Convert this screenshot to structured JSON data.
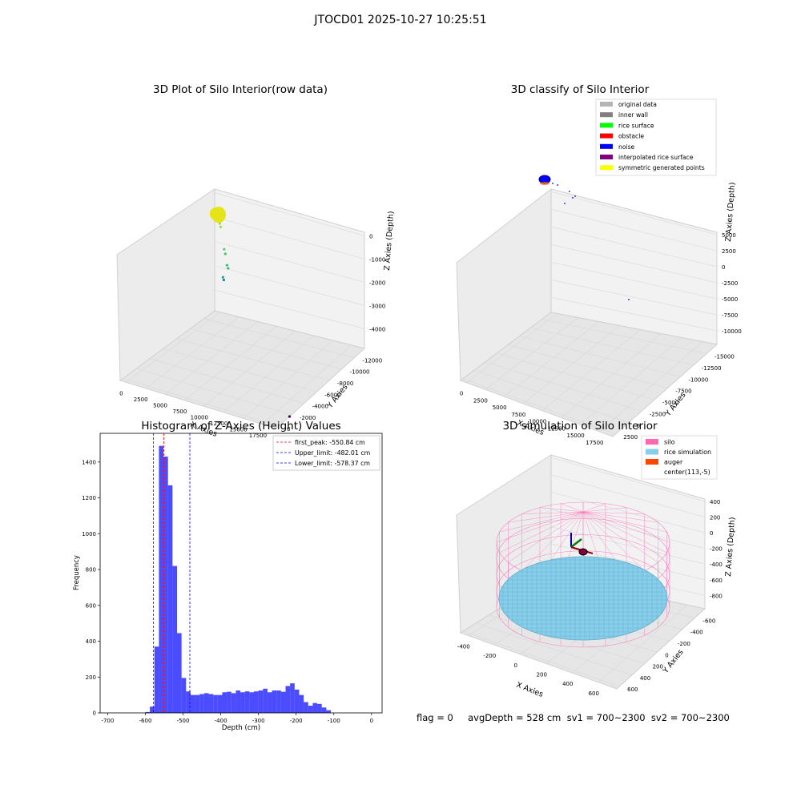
{
  "suptitle": "JTOCD01 2025-10-27 10:25:51",
  "footer": {
    "text": "flag = 0     avgDepth = 528 cm  sv1 = 700~2300  sv2 = 700~2300"
  },
  "chart_data": [
    {
      "type": "scatter",
      "projection": "3d",
      "title": "3D Plot of Silo Interior(row data)",
      "xlabel": "X Axies",
      "ylabel": "Y Axies",
      "zlabel": "Z Axies (Depth)",
      "xticks": [
        "0",
        "2500",
        "5000",
        "7500",
        "10000",
        "12500",
        "15000",
        "17500"
      ],
      "yticks": [
        "0",
        "-2000",
        "-4000",
        "-6000",
        "-8000",
        "-10000",
        "-12000"
      ],
      "zticks": [
        "0",
        "-1000",
        "-2000",
        "-3000",
        "-4000"
      ],
      "grid": true,
      "colormap": "viridis",
      "points": [
        {
          "x": 300,
          "y": -300,
          "z": -50,
          "color": "#e5e419"
        },
        {
          "x": 500,
          "y": -500,
          "z": -80,
          "color": "#dde318"
        },
        {
          "x": 900,
          "y": -600,
          "z": -120,
          "color": "#bddf26"
        },
        {
          "x": 1200,
          "y": -700,
          "z": -200,
          "color": "#a0da39"
        },
        {
          "x": 1500,
          "y": -500,
          "z": -300,
          "color": "#9bd93c"
        },
        {
          "x": 2500,
          "y": -600,
          "z": -900,
          "color": "#5ec962"
        },
        {
          "x": 2800,
          "y": -700,
          "z": -1000,
          "color": "#4ac16d"
        },
        {
          "x": 3200,
          "y": -900,
          "z": -1300,
          "color": "#3bbb75"
        },
        {
          "x": 3500,
          "y": -1000,
          "z": -1350,
          "color": "#35b779"
        },
        {
          "x": 2200,
          "y": -500,
          "z": -1900,
          "color": "#2a9d8f"
        },
        {
          "x": 2400,
          "y": -600,
          "z": -1950,
          "color": "#26828e"
        },
        {
          "x": 16800,
          "y": -11800,
          "z": -3700,
          "color": "#440154"
        }
      ]
    },
    {
      "type": "scatter",
      "projection": "3d",
      "title": "3D classify of Silo Interior",
      "xlabel": "X Axies",
      "ylabel": "Y Axies",
      "zlabel": "Z Axies (Depth)",
      "xticks": [
        "0",
        "2500",
        "5000",
        "7500",
        "10000",
        "12500",
        "15000",
        "17500"
      ],
      "yticks": [
        "2500",
        "0",
        "-2500",
        "-5000",
        "-7500",
        "-10000",
        "-12500",
        "-15000"
      ],
      "zticks": [
        "5000",
        "2500",
        "0",
        "-2500",
        "-5000",
        "-7500",
        "-10000"
      ],
      "grid": true,
      "legend_position": "top-right",
      "legend": [
        {
          "label": "original data",
          "color": "#b4b4b4"
        },
        {
          "label": "inner wall",
          "color": "#808080"
        },
        {
          "label": "rice surface",
          "color": "#00ff00"
        },
        {
          "label": "obstacle",
          "color": "#ff0000"
        },
        {
          "label": "noise",
          "color": "#0000ff"
        },
        {
          "label": "interpolated rice surface",
          "color": "#800080"
        },
        {
          "label": "symmetric generated points",
          "color": "#ffff00"
        }
      ]
    },
    {
      "type": "bar",
      "title": "Histogram of Z-Axies (Height) Values",
      "xlabel": "Depth (cm)",
      "ylabel": "Frequency",
      "xlim": [
        -720,
        28
      ],
      "ylim": [
        0,
        1560
      ],
      "xticks": [
        -700,
        -600,
        -500,
        -400,
        -300,
        -200,
        -100,
        0
      ],
      "yticks": [
        0,
        200,
        400,
        600,
        800,
        1000,
        1200,
        1400
      ],
      "bin_width": 12,
      "bar_color": "#0000ff",
      "bins": [
        {
          "x0": -600,
          "count": 5
        },
        {
          "x0": -588,
          "count": 35
        },
        {
          "x0": -576,
          "count": 370
        },
        {
          "x0": -564,
          "count": 1490
        },
        {
          "x0": -552,
          "count": 1430
        },
        {
          "x0": -540,
          "count": 1270
        },
        {
          "x0": -528,
          "count": 820
        },
        {
          "x0": -516,
          "count": 445
        },
        {
          "x0": -504,
          "count": 195
        },
        {
          "x0": -492,
          "count": 120
        },
        {
          "x0": -480,
          "count": 100
        },
        {
          "x0": -468,
          "count": 100
        },
        {
          "x0": -456,
          "count": 105
        },
        {
          "x0": -444,
          "count": 110
        },
        {
          "x0": -432,
          "count": 105
        },
        {
          "x0": -420,
          "count": 100
        },
        {
          "x0": -408,
          "count": 100
        },
        {
          "x0": -396,
          "count": 115
        },
        {
          "x0": -384,
          "count": 118
        },
        {
          "x0": -372,
          "count": 110
        },
        {
          "x0": -360,
          "count": 125
        },
        {
          "x0": -348,
          "count": 115
        },
        {
          "x0": -336,
          "count": 120
        },
        {
          "x0": -324,
          "count": 115
        },
        {
          "x0": -312,
          "count": 120
        },
        {
          "x0": -300,
          "count": 125
        },
        {
          "x0": -288,
          "count": 135
        },
        {
          "x0": -276,
          "count": 115
        },
        {
          "x0": -264,
          "count": 125
        },
        {
          "x0": -252,
          "count": 125
        },
        {
          "x0": -240,
          "count": 118
        },
        {
          "x0": -228,
          "count": 150
        },
        {
          "x0": -216,
          "count": 165
        },
        {
          "x0": -204,
          "count": 130
        },
        {
          "x0": -192,
          "count": 100
        },
        {
          "x0": -180,
          "count": 60
        },
        {
          "x0": -168,
          "count": 40
        },
        {
          "x0": -156,
          "count": 55
        },
        {
          "x0": -144,
          "count": 50
        },
        {
          "x0": -132,
          "count": 30
        },
        {
          "x0": -120,
          "count": 15
        }
      ],
      "vlines": [
        {
          "label": "first_peak: -550.84 cm",
          "x": -550.84,
          "color": "#ff0000"
        },
        {
          "label": "Upper_limit: -482.01 cm",
          "x": -482.01,
          "color": "#0000ff"
        },
        {
          "label": "Lower_limit: -578.37 cm",
          "x": -578.37,
          "color": "#0000ff"
        }
      ],
      "legend_position": "top-right"
    },
    {
      "type": "3d-surface",
      "title": "3D simulation of Silo Interior",
      "xlabel": "X Axies",
      "ylabel": "Y Axies",
      "zlabel": "Z Axies (Depth)",
      "xticks": [
        "-400",
        "-200",
        "0",
        "200",
        "400",
        "600"
      ],
      "yticks": [
        "600",
        "400",
        "200",
        "0",
        "-200",
        "-400",
        "-600"
      ],
      "zticks": [
        "400",
        "200",
        "0",
        "-200",
        "-400",
        "-600",
        "-800"
      ],
      "grid": true,
      "legend_position": "top-right",
      "legend": [
        {
          "label": "silo",
          "color": "#ff69b4"
        },
        {
          "label": "rice simulation",
          "color": "#87ceeb"
        },
        {
          "label": "auger",
          "color": "#ff4500"
        },
        {
          "label": "center(113,-5)",
          "color": "#ffffff"
        }
      ]
    }
  ]
}
